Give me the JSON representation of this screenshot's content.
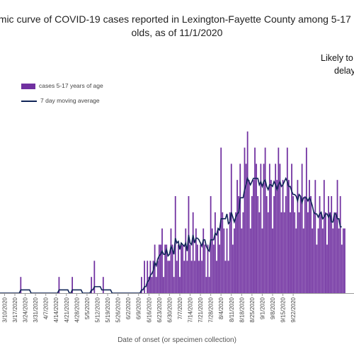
{
  "colors": {
    "bar": "#7030a0",
    "line": "#0f2457",
    "axis": "#9a9a9a",
    "tick_text": "#444444"
  },
  "chart_data": {
    "type": "bar",
    "title_lines": [
      "emic curve of COVID-19 cases reported in Lexington-Fayette County among 5-17",
      "olds, as of 11/1/2020"
    ],
    "annotation_lines": [
      "Likely to",
      "delay"
    ],
    "xlabel": "Date of onset (or specimen collection)",
    "ylabel": "",
    "x_start": "2020-03-03",
    "tick_labels": [
      "3/10/2020",
      "3/17/2020",
      "3/24/2020",
      "3/31/2020",
      "4/7/2020",
      "4/14/2020",
      "4/21/2020",
      "4/28/2020",
      "5/5/2020",
      "5/12/2020",
      "5/19/2020",
      "5/26/2020",
      "6/2/2020",
      "6/9/2020",
      "6/16/2020",
      "6/23/2020",
      "6/30/2020",
      "7/7/2020",
      "7/14/2020",
      "7/21/2020",
      "7/28/2020",
      "8/4/2020",
      "8/11/2020",
      "8/18/2020",
      "8/25/2020",
      "9/1/2020",
      "9/8/2020",
      "9/15/2020",
      "9/22/2020"
    ],
    "ylim": [
      0,
      12
    ],
    "grid": false,
    "legend_position": "top-left",
    "series": [
      {
        "name": "cases 5-17 years of age",
        "type": "bar",
        "values": [
          0,
          0,
          0,
          0,
          0,
          0,
          0,
          0,
          0,
          0,
          0,
          0,
          0,
          0,
          0,
          0,
          0,
          0,
          1,
          0,
          0,
          0,
          0,
          0,
          0,
          0,
          0,
          0,
          0,
          0,
          0,
          0,
          0,
          0,
          0,
          0,
          0,
          0,
          0,
          0,
          0,
          0,
          0,
          0,
          1,
          0,
          0,
          0,
          0,
          0,
          0,
          0,
          0,
          1,
          0,
          0,
          0,
          0,
          0,
          0,
          0,
          0,
          0,
          0,
          0,
          0,
          1,
          0,
          2,
          0,
          0,
          0,
          0,
          0,
          1,
          0,
          0,
          0,
          0,
          0,
          0,
          0,
          0,
          0,
          0,
          0,
          0,
          0,
          0,
          0,
          0,
          0,
          0,
          0,
          0,
          0,
          0,
          0,
          0,
          0,
          1,
          0,
          2,
          0,
          2,
          1,
          2,
          1,
          2,
          3,
          1,
          2,
          3,
          3,
          4,
          1,
          3,
          3,
          2,
          2,
          4,
          3,
          1,
          6,
          2,
          3,
          1,
          3,
          3,
          2,
          4,
          2,
          6,
          3,
          2,
          5,
          2,
          4,
          3,
          2,
          3,
          2,
          4,
          3,
          1,
          3,
          1,
          6,
          4,
          3,
          5,
          2,
          4,
          3,
          9,
          5,
          4,
          2,
          4,
          2,
          5,
          8,
          3,
          4,
          5,
          7,
          6,
          8,
          4,
          5,
          9,
          8,
          10,
          7,
          4,
          6,
          7,
          9,
          8,
          6,
          5,
          8,
          4,
          8,
          9,
          6,
          5,
          8,
          7,
          4,
          6,
          8,
          7,
          9,
          8,
          5,
          7,
          5,
          6,
          9,
          7,
          5,
          8,
          6,
          5,
          4,
          7,
          5,
          6,
          8,
          4,
          6,
          9,
          5,
          7,
          6,
          4,
          5,
          7,
          3,
          4,
          6,
          5,
          4,
          7,
          5,
          3,
          6,
          5,
          6,
          4,
          5,
          5,
          7,
          4,
          6,
          3,
          4,
          4
        ]
      },
      {
        "name": "7 day moving average",
        "type": "line",
        "values": [
          0,
          0,
          0,
          0,
          0,
          0,
          0,
          0,
          0,
          0,
          0,
          0,
          0,
          0,
          0,
          0,
          0,
          0,
          0.2,
          0.2,
          0.2,
          0.2,
          0.2,
          0.2,
          0.2,
          0,
          0,
          0,
          0,
          0,
          0,
          0,
          0,
          0,
          0,
          0,
          0,
          0,
          0,
          0,
          0,
          0,
          0,
          0,
          0.2,
          0.2,
          0.2,
          0.2,
          0.2,
          0.2,
          0.2,
          0,
          0,
          0.2,
          0.2,
          0.2,
          0.2,
          0.2,
          0.2,
          0.2,
          0,
          0,
          0,
          0,
          0,
          0,
          0.2,
          0.2,
          0.4,
          0.4,
          0.4,
          0.4,
          0.4,
          0.2,
          0.2,
          0.2,
          0.2,
          0.2,
          0.2,
          0.2,
          0,
          0,
          0,
          0,
          0,
          0,
          0,
          0,
          0,
          0,
          0,
          0,
          0,
          0,
          0,
          0,
          0,
          0,
          0,
          0,
          0.2,
          0.2,
          0.4,
          0.4,
          0.7,
          0.8,
          1.1,
          1.2,
          1.4,
          1.9,
          1.7,
          2.1,
          2.3,
          2.4,
          2.6,
          2.4,
          2.4,
          2.7,
          2.3,
          2.4,
          2.9,
          2.7,
          2.4,
          3.4,
          3.1,
          3.2,
          2.7,
          3.1,
          3.0,
          2.9,
          3.1,
          2.6,
          3.6,
          3.1,
          3.0,
          3.6,
          3.1,
          3.4,
          3.4,
          3.3,
          3.1,
          2.9,
          3.3,
          3.3,
          2.9,
          2.7,
          2.6,
          3.3,
          3.3,
          3.3,
          3.7,
          3.6,
          4.0,
          3.9,
          4.6,
          4.6,
          4.6,
          4.6,
          4.9,
          4.3,
          4.4,
          5.0,
          4.7,
          4.4,
          4.7,
          4.9,
          5.0,
          5.9,
          5.9,
          5.9,
          6.4,
          6.7,
          7.1,
          6.9,
          6.7,
          6.9,
          7.1,
          7.1,
          7.1,
          7.1,
          6.7,
          6.9,
          6.6,
          6.9,
          7.0,
          6.6,
          6.4,
          6.7,
          6.7,
          6.6,
          6.9,
          6.7,
          6.4,
          6.7,
          6.9,
          6.6,
          6.7,
          6.9,
          7.1,
          6.9,
          6.6,
          6.6,
          6.3,
          6.1,
          6.1,
          6.0,
          5.7,
          6.1,
          6.0,
          5.6,
          5.9,
          5.9,
          5.9,
          5.7,
          5.9,
          5.7,
          5.4,
          5.0,
          4.9,
          4.9,
          4.7,
          4.9,
          5.0,
          4.6,
          4.7,
          4.9,
          4.9,
          4.7,
          4.9,
          4.4,
          4.4,
          4.9,
          4.9,
          4.6,
          4.6,
          4.1,
          4.1
        ]
      }
    ]
  }
}
